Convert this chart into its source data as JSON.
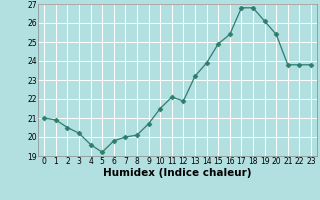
{
  "x": [
    0,
    1,
    2,
    3,
    4,
    5,
    6,
    7,
    8,
    9,
    10,
    11,
    12,
    13,
    14,
    15,
    16,
    17,
    18,
    19,
    20,
    21,
    22,
    23
  ],
  "y": [
    21.0,
    20.9,
    20.5,
    20.2,
    19.6,
    19.2,
    19.8,
    20.0,
    20.1,
    20.7,
    21.5,
    22.1,
    21.9,
    23.2,
    23.9,
    24.9,
    25.4,
    26.8,
    26.8,
    26.1,
    25.4,
    23.8,
    23.8,
    23.8
  ],
  "xlabel": "Humidex (Indice chaleur)",
  "bg_color": "#b2dfdf",
  "grid_color": "#ffffff",
  "line_color": "#2e7d6e",
  "marker_color": "#2e7d6e",
  "ylim": [
    19,
    27
  ],
  "yticks": [
    19,
    20,
    21,
    22,
    23,
    24,
    25,
    26,
    27
  ],
  "xticks": [
    0,
    1,
    2,
    3,
    4,
    5,
    6,
    7,
    8,
    9,
    10,
    11,
    12,
    13,
    14,
    15,
    16,
    17,
    18,
    19,
    20,
    21,
    22,
    23
  ],
  "tick_fontsize": 5.5,
  "xlabel_fontsize": 7.5
}
